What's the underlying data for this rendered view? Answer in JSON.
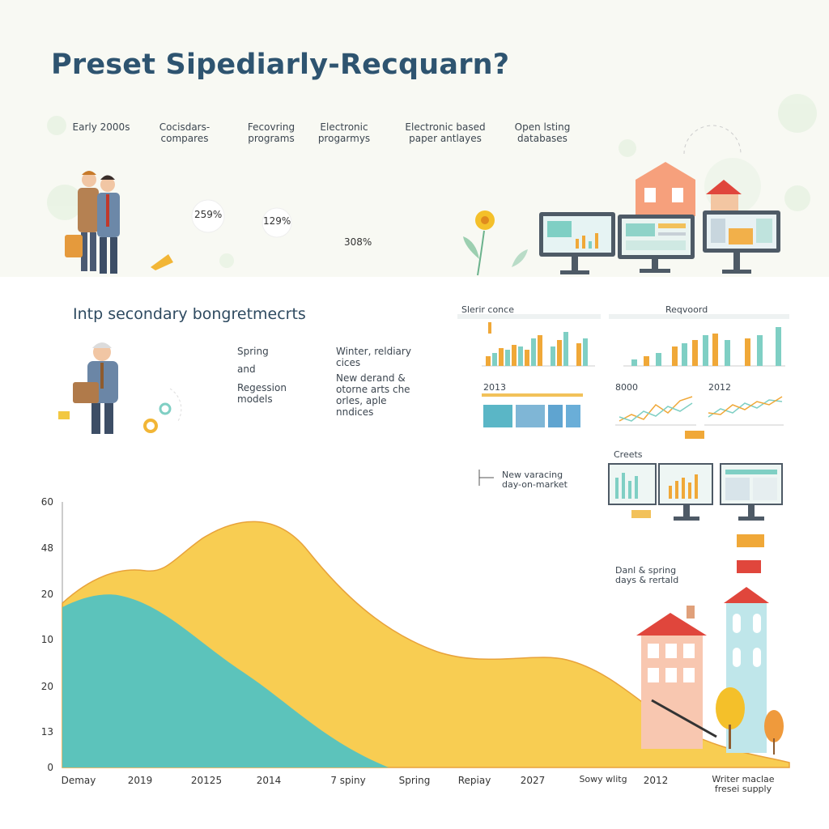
{
  "header": {
    "title": "Preset Sipediarly-Recquarn?"
  },
  "timeline": [
    "Early 2000s",
    "Cocisdars-compares",
    "Fecovring programs",
    "Electronic progarmys",
    "Electronic based paper antlayes",
    "Open lsting databases"
  ],
  "percentages": [
    "259%",
    "129%",
    "308%"
  ],
  "section": {
    "title": "Intp secondary bongretmecrts",
    "left": [
      "Spring",
      "and",
      "Regession models"
    ],
    "right": [
      "Winter, reldiary cices",
      "New derand & otorne arts che orles, aple nndices"
    ]
  },
  "panels": {
    "left_title": "Slerir conce",
    "right_title": "Reqvoord",
    "labels": [
      "2013",
      "8000",
      "2012"
    ],
    "note": "New varacing day-on-market",
    "monitors_title": "Creets",
    "side_note": "Danl & spring days & rertald"
  },
  "chart": {
    "y_labels": [
      "60",
      "48",
      "20",
      "10",
      "20",
      "13",
      "0"
    ],
    "x_labels": [
      "Demay",
      "2019",
      "20125",
      "2014",
      "7 spiny",
      "Spring",
      "Repiay",
      "2027",
      "Sowy wlitg",
      "2012",
      "Writer maclae fresei supply"
    ]
  }
}
